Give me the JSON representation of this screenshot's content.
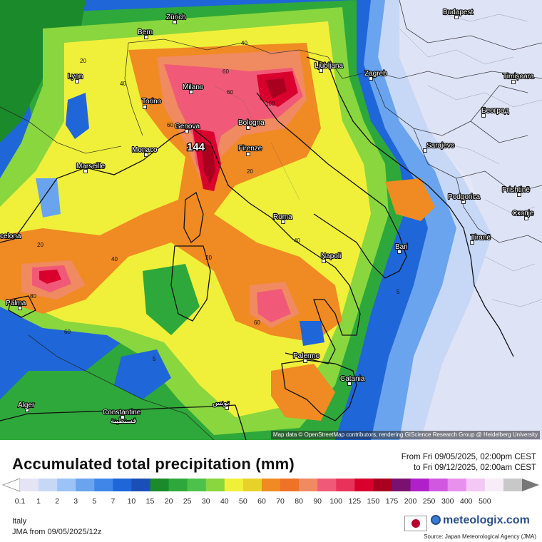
{
  "map": {
    "attribution": "Map data © OpenStreetMap contributors, rendering GIScience Research Group @ Heidelberg University",
    "max_value_label": "144",
    "cities": [
      {
        "id": "zurich",
        "name": "Zürich"
      },
      {
        "id": "bern",
        "name": "Bern"
      },
      {
        "id": "lyon",
        "name": "Lyon"
      },
      {
        "id": "torino",
        "name": "Torino"
      },
      {
        "id": "milano",
        "name": "Milano"
      },
      {
        "id": "genova",
        "name": "Genova"
      },
      {
        "id": "monaco",
        "name": "Monaco"
      },
      {
        "id": "marseille",
        "name": "Marseille"
      },
      {
        "id": "bologna",
        "name": "Bologna"
      },
      {
        "id": "firenze",
        "name": "Firenze"
      },
      {
        "id": "ljubljana",
        "name": "Ljubljana"
      },
      {
        "id": "zagreb",
        "name": "Zagreb"
      },
      {
        "id": "budapest",
        "name": "Budapest"
      },
      {
        "id": "timisoara",
        "name": "Timișoara"
      },
      {
        "id": "beograd",
        "name": "Београд"
      },
      {
        "id": "sarajevo",
        "name": "Sarajevo"
      },
      {
        "id": "podgorica",
        "name": "Podgorica"
      },
      {
        "id": "pristine",
        "name": "Prishtinë"
      },
      {
        "id": "skopje",
        "name": "Скопје"
      },
      {
        "id": "tirane",
        "name": "Tiranë"
      },
      {
        "id": "roma",
        "name": "Roma"
      },
      {
        "id": "napoli",
        "name": "Napoli"
      },
      {
        "id": "bari",
        "name": "Bari"
      },
      {
        "id": "palermo",
        "name": "Palermo"
      },
      {
        "id": "catania",
        "name": "Catania"
      },
      {
        "id": "barcelona",
        "name": "celona"
      },
      {
        "id": "palma",
        "name": "Palma"
      },
      {
        "id": "alger",
        "name": "Alger"
      },
      {
        "id": "constantine",
        "name": "Constantine"
      },
      {
        "id": "constantine_ar",
        "name": "قسنطينة"
      },
      {
        "id": "tunis",
        "name": "تونس"
      }
    ],
    "contour_labels": [
      "20",
      "40",
      "60",
      "80",
      "100",
      "60",
      "40",
      "20",
      "80",
      "60",
      "40",
      "20",
      "5",
      "60",
      "5",
      "20"
    ]
  },
  "footer": {
    "title": "Accumulated total precipitation (mm)",
    "period_from": "From Fri 09/05/2025, 02:00pm CEST",
    "period_to": "to Fri 09/12/2025, 02:00am CEST",
    "region": "Italy",
    "model_run": "JMA from  09/05/2025/12z",
    "brand": "meteologix.com",
    "source": "Source: Japan Meteorological Agency (JMA)"
  },
  "legend": {
    "ticks": [
      "0.1",
      "1",
      "2",
      "3",
      "5",
      "7",
      "10",
      "15",
      "20",
      "25",
      "30",
      "40",
      "50",
      "60",
      "70",
      "80",
      "90",
      "100",
      "125",
      "150",
      "175",
      "200",
      "250",
      "300",
      "400",
      "500"
    ],
    "colors": [
      "#e4e4f4",
      "#c7d8f7",
      "#9cc3f5",
      "#6aa4ef",
      "#3f86e8",
      "#1f66d8",
      "#1b4fb8",
      "#1a8a2a",
      "#2ea83a",
      "#4cc24a",
      "#8ad63e",
      "#f0f03a",
      "#e8d22a",
      "#f08a22",
      "#ee7326",
      "#f08a60",
      "#f05a78",
      "#e8325a",
      "#d9002e",
      "#a8001e",
      "#7a1070",
      "#b020c8",
      "#d058e0",
      "#e890ee",
      "#f4c8f4",
      "#f8ecf8",
      "#c8c8c8"
    ]
  }
}
